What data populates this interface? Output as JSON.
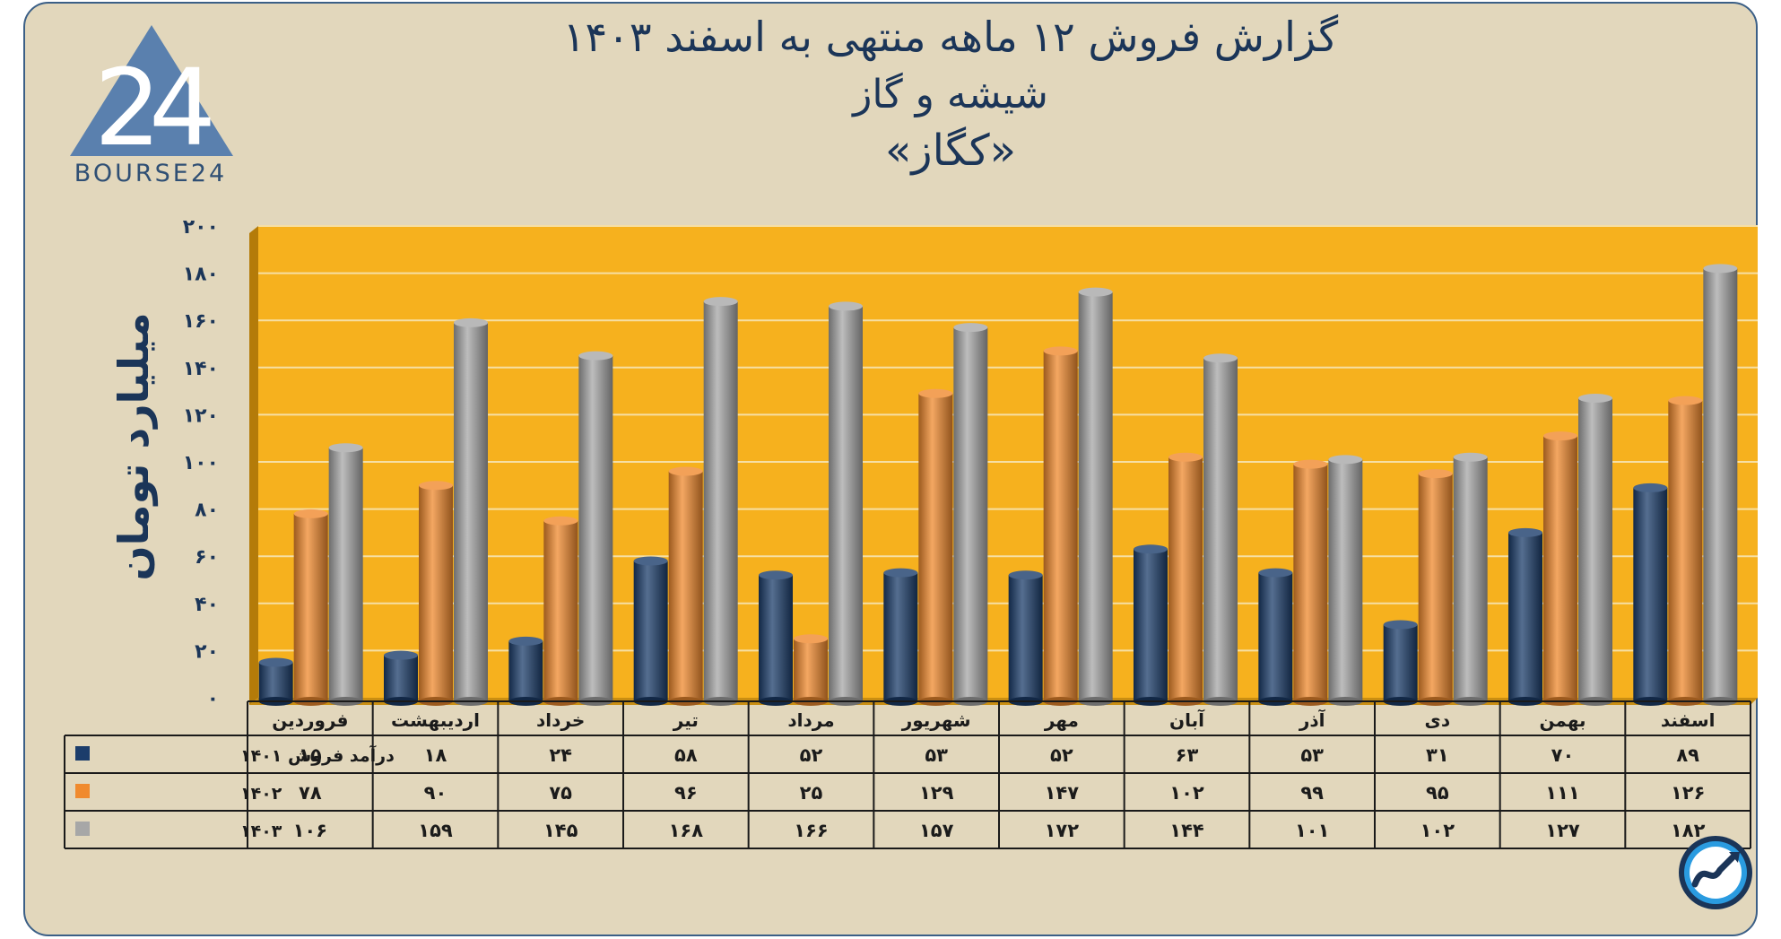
{
  "title_line1": "گزارش  فروش ۱۲ ماهه منتهی به اسفند ۱۴۰۳",
  "title_line2": "شیشه و گاز",
  "title_line3": "«کگاز»",
  "logo_text": "BOURSE24",
  "chart_data": {
    "type": "bar",
    "ylabel": "میلیارد تومان",
    "ylim": [
      0,
      200
    ],
    "yticks": [
      "۰",
      "۲۰",
      "۴۰",
      "۶۰",
      "۸۰",
      "۱۰۰",
      "۱۲۰",
      "۱۴۰",
      "۱۶۰",
      "۱۸۰",
      "۲۰۰"
    ],
    "grid": true,
    "categories": [
      "فروردین",
      "اردیبهشت",
      "خرداد",
      "تیر",
      "مرداد",
      "شهریور",
      "مهر",
      "آبان",
      "آذر",
      "دی",
      "بهمن",
      "اسفند"
    ],
    "series": [
      {
        "name": "درآمد فروش ۱۴۰۱",
        "color": "#1c3d6b",
        "values": [
          15,
          18,
          24,
          58,
          52,
          53,
          52,
          63,
          53,
          31,
          70,
          89
        ],
        "labels": [
          "۱۵",
          "۱۸",
          "۲۴",
          "۵۸",
          "۵۲",
          "۵۳",
          "۵۲",
          "۶۳",
          "۵۳",
          "۳۱",
          "۷۰",
          "۸۹"
        ]
      },
      {
        "name": "۱۴۰۲",
        "color": "#f08a2e",
        "values": [
          78,
          90,
          75,
          96,
          25,
          129,
          147,
          102,
          99,
          95,
          111,
          126
        ],
        "labels": [
          "۷۸",
          "۹۰",
          "۷۵",
          "۹۶",
          "۲۵",
          "۱۲۹",
          "۱۴۷",
          "۱۰۲",
          "۹۹",
          "۹۵",
          "۱۱۱",
          "۱۲۶"
        ]
      },
      {
        "name": "۱۴۰۳",
        "color": "#a7a7a7",
        "values": [
          106,
          159,
          145,
          168,
          166,
          157,
          172,
          144,
          101,
          102,
          127,
          182
        ],
        "labels": [
          "۱۰۶",
          "۱۵۹",
          "۱۴۵",
          "۱۶۸",
          "۱۶۶",
          "۱۵۷",
          "۱۷۲",
          "۱۴۴",
          "۱۰۱",
          "۱۰۲",
          "۱۲۷",
          "۱۸۲"
        ]
      }
    ]
  }
}
